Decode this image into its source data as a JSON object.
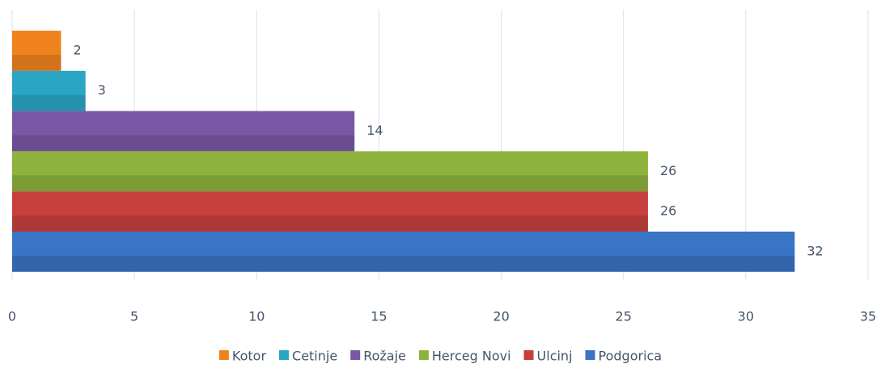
{
  "chart_data": {
    "type": "bar",
    "orientation": "horizontal",
    "series": [
      {
        "name": "Kotor",
        "color": "#f0821e",
        "values": [
          2
        ]
      },
      {
        "name": "Cetinje",
        "color": "#2ba5c4",
        "values": [
          3
        ]
      },
      {
        "name": "Rožaje",
        "color": "#7b57a6",
        "values": [
          14
        ]
      },
      {
        "name": "Herceg Novi",
        "color": "#8db33c",
        "values": [
          26
        ]
      },
      {
        "name": "Ulcinj",
        "color": "#c7403d",
        "values": [
          26
        ]
      },
      {
        "name": "Podgorica",
        "color": "#3a74c4",
        "values": [
          32
        ]
      }
    ],
    "xlim": [
      0,
      35
    ],
    "xticks": [
      0,
      5,
      10,
      15,
      20,
      25,
      30,
      35
    ],
    "grid": true,
    "legend": "bottom"
  }
}
